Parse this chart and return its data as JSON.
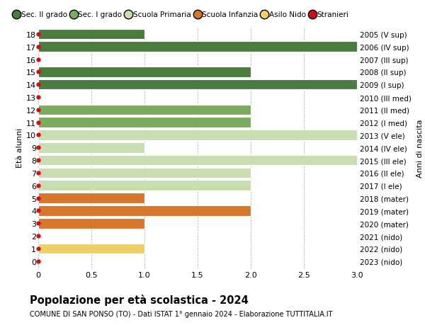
{
  "ages": [
    18,
    17,
    16,
    15,
    14,
    13,
    12,
    11,
    10,
    9,
    8,
    7,
    6,
    5,
    4,
    3,
    2,
    1,
    0
  ],
  "years": [
    "2005 (V sup)",
    "2006 (IV sup)",
    "2007 (III sup)",
    "2008 (II sup)",
    "2009 (I sup)",
    "2010 (III med)",
    "2011 (II med)",
    "2012 (I med)",
    "2013 (V ele)",
    "2014 (IV ele)",
    "2015 (III ele)",
    "2016 (II ele)",
    "2017 (I ele)",
    "2018 (mater)",
    "2019 (mater)",
    "2020 (mater)",
    "2021 (nido)",
    "2022 (nido)",
    "2023 (nido)"
  ],
  "values": [
    1,
    3,
    0,
    2,
    3,
    0,
    2,
    2,
    3,
    1,
    3,
    2,
    2,
    1,
    2,
    1,
    0,
    1,
    0
  ],
  "colors": [
    "#4a7c3f",
    "#4a7c3f",
    "#4a7c3f",
    "#4a7c3f",
    "#4a7c3f",
    "#7aab5e",
    "#7aab5e",
    "#7aab5e",
    "#c8ddb0",
    "#c8ddb0",
    "#c8ddb0",
    "#c8ddb0",
    "#c8ddb0",
    "#d9762d",
    "#d9762d",
    "#d9762d",
    "#f0d060",
    "#f0d060",
    "#f0d060"
  ],
  "stranieri_dot_color": "#cc1111",
  "legend_labels": [
    "Sec. II grado",
    "Sec. I grado",
    "Scuola Primaria",
    "Scuola Infanzia",
    "Asilo Nido",
    "Stranieri"
  ],
  "legend_colors": [
    "#4a7c3f",
    "#7aab5e",
    "#c8ddb0",
    "#d9762d",
    "#f0d060",
    "#cc1111"
  ],
  "title": "Popolazione per età scolastica - 2024",
  "subtitle": "COMUNE DI SAN PONSO (TO) - Dati ISTAT 1° gennaio 2024 - Elaborazione TUTTITALIA.IT",
  "ylabel_left": "Età alunni",
  "ylabel_right": "Anni di nascita",
  "xlim": [
    0,
    3.0
  ],
  "ylim_min": -0.55,
  "ylim_max": 18.55,
  "background_color": "#ffffff",
  "bar_height": 0.82,
  "grid_color": "#bbbbbb",
  "xticks": [
    0,
    0.5,
    1.0,
    1.5,
    2.0,
    2.5,
    3.0
  ],
  "xtick_labels": [
    "0",
    "0.5",
    "1.0",
    "1.5",
    "2.0",
    "2.5",
    "3.0"
  ]
}
